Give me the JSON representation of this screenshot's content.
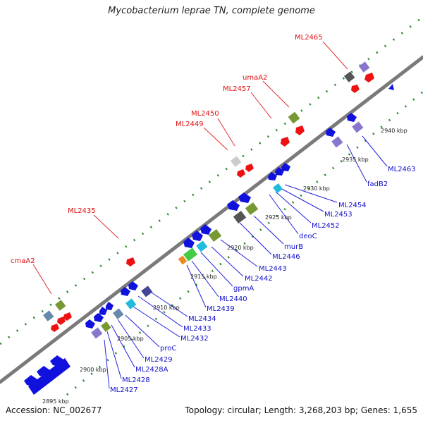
{
  "title": "Mycobacterium leprae TN, complete genome",
  "accession": "Accession: NC_002677",
  "summary": "Topology: circular; Length: 3,268,203 bp; Genes: 1,655",
  "colors": {
    "backbone": "#8f8f8f",
    "forward_label": "#e01010",
    "reverse_label": "#1010cc",
    "guide_dots": "#2d8a2d",
    "leader": "#e03030",
    "leader_rev": "#2222dd"
  },
  "ticks": [
    {
      "label": "2895 kbp"
    },
    {
      "label": "2900 kbp"
    },
    {
      "label": "2905 kbp"
    },
    {
      "label": "2910 kbp"
    },
    {
      "label": "2915 kbp"
    },
    {
      "label": "2920 kbp"
    },
    {
      "label": "2925 kbp"
    },
    {
      "label": "2930 kbp"
    },
    {
      "label": "2935 kbp"
    },
    {
      "label": "2940 kbp"
    }
  ],
  "forward_labels": [
    "ML2465",
    "umaA2",
    "ML2457",
    "ML2450",
    "ML2449",
    "ML2435",
    "cmaA2"
  ],
  "reverse_labels": [
    "ML2463",
    "fadB2",
    "ML2454",
    "ML2453",
    "ML2452",
    "deoC",
    "murB",
    "ML2446",
    "ML2443",
    "ML2442",
    "gpmA",
    "ML2440",
    "ML2439",
    "ML2434",
    "ML2433",
    "ML2432",
    "proC",
    "ML2429",
    "ML2428A",
    "ML2428",
    "ML2427"
  ]
}
